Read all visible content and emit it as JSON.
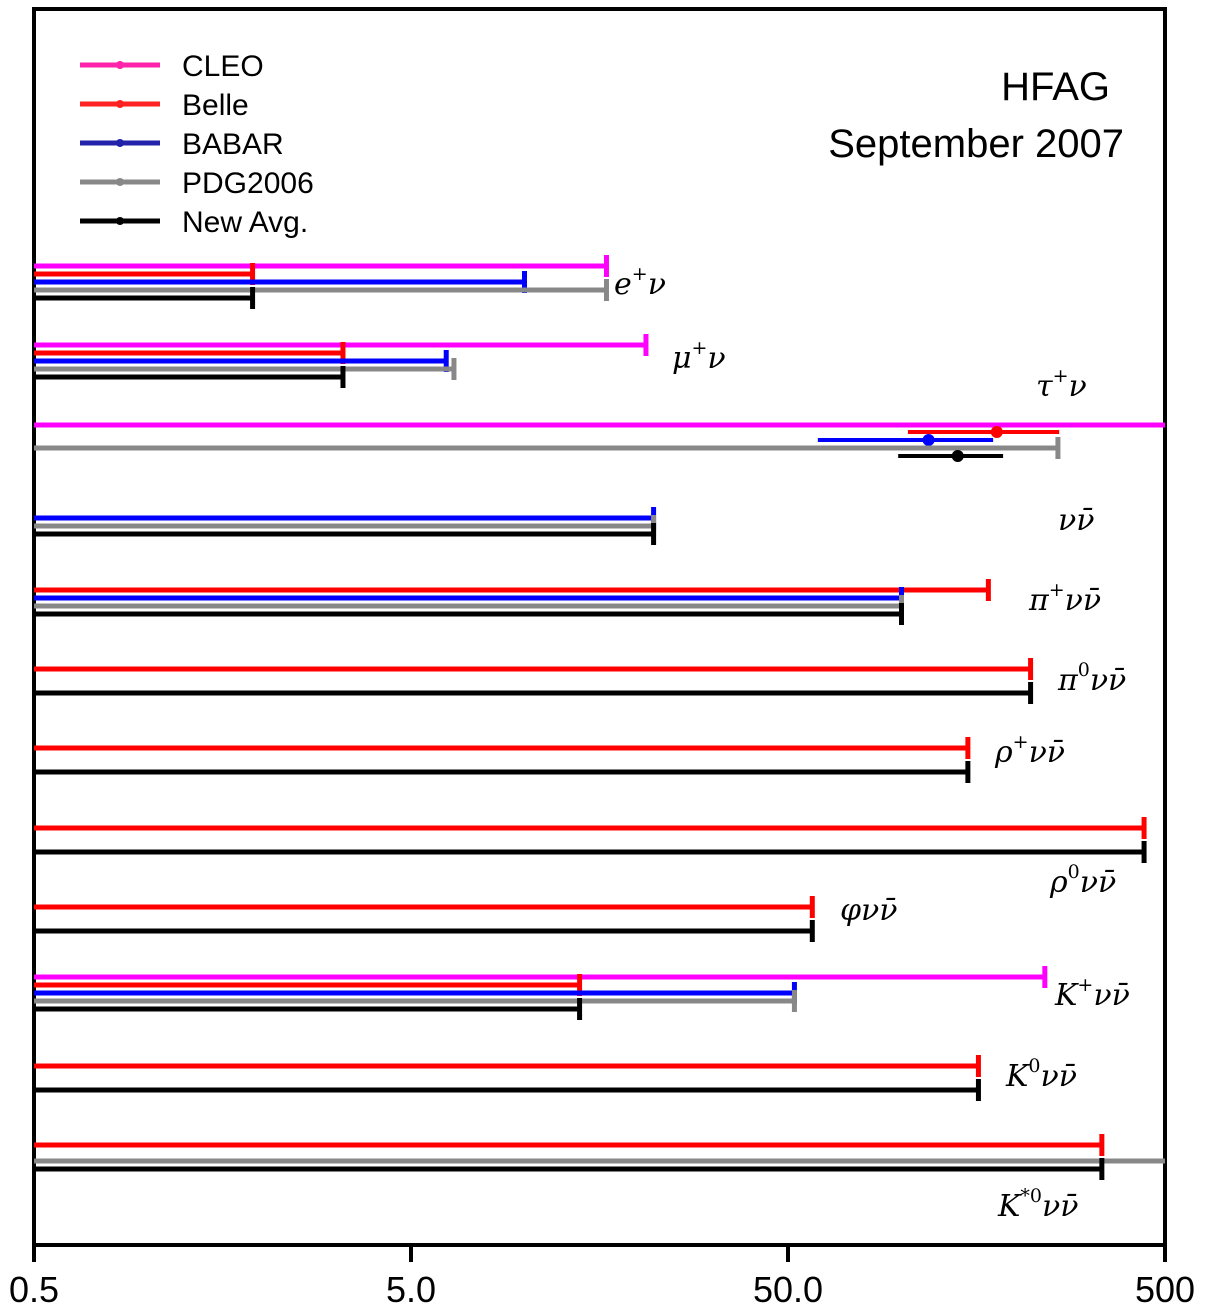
{
  "chart_data": {
    "type": "horizontal-limits",
    "title": "HFAG",
    "subtitle": "September 2007",
    "x_scale": "log",
    "xlim": [
      0.5,
      500
    ],
    "x_ticks": [
      "0.5",
      "5.0",
      "50.0",
      "500"
    ],
    "grid": false,
    "legend_position": "top-left",
    "legend": [
      {
        "name": "CLEO",
        "color": "#ff00ff"
      },
      {
        "name": "Belle",
        "color": "#ff0000"
      },
      {
        "name": "BABAR",
        "color": "#0000ff"
      },
      {
        "name": "PDG2006",
        "color": "#888888"
      },
      {
        "name": "New Avg.",
        "color": "#000000"
      }
    ],
    "legend_line_colors": [
      "#ff22aa",
      "#ff2222",
      "#2222aa",
      "#888888",
      "#000000"
    ],
    "groups": [
      {
        "mode": "e",
        "sup": "+",
        "tail": "ν",
        "bars": [
          {
            "exp": "CLEO",
            "limit": 16.5
          },
          {
            "exp": "Belle",
            "limit": 1.9
          },
          {
            "exp": "BABAR",
            "limit": 10.0
          },
          {
            "exp": "PDG2006",
            "limit": 16.5
          },
          {
            "exp": "New Avg.",
            "limit": 1.9
          }
        ]
      },
      {
        "mode": "μ",
        "sup": "+",
        "tail": "ν",
        "bars": [
          {
            "exp": "CLEO",
            "limit": 21.0
          },
          {
            "exp": "Belle",
            "limit": 3.3
          },
          {
            "exp": "BABAR",
            "limit": 6.2
          },
          {
            "exp": "PDG2006",
            "limit": 6.5
          },
          {
            "exp": "New Avg.",
            "limit": 3.3
          }
        ]
      },
      {
        "mode": "τ",
        "sup": "+",
        "tail": "ν",
        "bars": [
          {
            "exp": "CLEO",
            "limit": 500,
            "open": true
          },
          {
            "exp": "Belle",
            "value": 179,
            "low": 104,
            "high": 262
          },
          {
            "exp": "BABAR",
            "value": 118,
            "low": 60,
            "high": 175
          },
          {
            "exp": "PDG2006",
            "limit": 260
          },
          {
            "exp": "New Avg.",
            "value": 141,
            "low": 98,
            "high": 186
          }
        ]
      },
      {
        "mode": "ν",
        "sup": "",
        "tail": "ν̄",
        "bars": [
          {
            "exp": "BABAR",
            "limit": 22
          },
          {
            "exp": "PDG2006",
            "limit": 22
          },
          {
            "exp": "New Avg.",
            "limit": 22
          }
        ],
        "unit_scale": 10
      },
      {
        "mode": "π",
        "sup": "+",
        "tail": "νν̄",
        "bars": [
          {
            "exp": "Belle",
            "limit": 170
          },
          {
            "exp": "BABAR",
            "limit": 100
          },
          {
            "exp": "PDG2006",
            "limit": 100
          },
          {
            "exp": "New Avg.",
            "limit": 100
          }
        ]
      },
      {
        "mode": "π",
        "sup": "0",
        "tail": "νν̄",
        "bars": [
          {
            "exp": "Belle",
            "limit": 220
          },
          {
            "exp": "New Avg.",
            "limit": 220
          }
        ]
      },
      {
        "mode": "ρ",
        "sup": "+",
        "tail": "νν̄",
        "bars": [
          {
            "exp": "Belle",
            "limit": 150
          },
          {
            "exp": "New Avg.",
            "limit": 150
          }
        ]
      },
      {
        "mode": "ρ",
        "sup": "0",
        "tail": "νν̄",
        "bars": [
          {
            "exp": "Belle",
            "limit": 440
          },
          {
            "exp": "New Avg.",
            "limit": 440
          }
        ]
      },
      {
        "mode": "φ",
        "sup": "",
        "tail": "νν̄",
        "bars": [
          {
            "exp": "Belle",
            "limit": 58
          },
          {
            "exp": "New Avg.",
            "limit": 58
          }
        ]
      },
      {
        "mode": "K",
        "sup": "+",
        "tail": "νν̄",
        "bars": [
          {
            "exp": "CLEO",
            "limit": 240
          },
          {
            "exp": "Belle",
            "limit": 14
          },
          {
            "exp": "BABAR",
            "limit": 52
          },
          {
            "exp": "PDG2006",
            "limit": 52
          },
          {
            "exp": "New Avg.",
            "limit": 14
          }
        ]
      },
      {
        "mode": "K",
        "sup": "0",
        "tail": "νν̄",
        "bars": [
          {
            "exp": "Belle",
            "limit": 160
          },
          {
            "exp": "New Avg.",
            "limit": 160
          }
        ]
      },
      {
        "mode": "K",
        "sup": "*0",
        "tail": "νν̄",
        "bars": [
          {
            "exp": "Belle",
            "limit": 340
          },
          {
            "exp": "PDG2006",
            "limit": 500,
            "open": true
          },
          {
            "exp": "New Avg.",
            "limit": 340
          }
        ]
      }
    ]
  }
}
